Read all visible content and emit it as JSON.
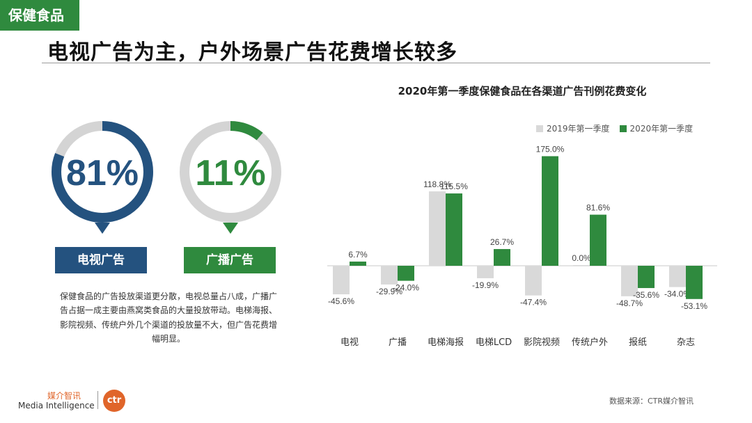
{
  "header": {
    "tag": "保健食品",
    "headline": "电视广告为主，户外场景广告花费增长较多"
  },
  "rings": [
    {
      "value": "81%",
      "fraction": 0.81,
      "label": "电视广告",
      "color": "#24527f",
      "label_bg": "#24527f"
    },
    {
      "value": "11%",
      "fraction": 0.11,
      "label": "广播广告",
      "color": "#2f8a3e",
      "label_bg": "#2f8a3e"
    }
  ],
  "description": "保健食品的广告投放渠道更分散，电视总量占八成，广播广告占据一成主要由燕窝类食品的大量投放带动。电梯海报、影院视频、传统户外几个渠道的投放量不大，但广告花费增幅明显。",
  "colors": {
    "series_2019": "#d9d9d9",
    "series_2020": "#2f8a3e",
    "ring_track": "#d4d4d4"
  },
  "chart_data": {
    "type": "bar",
    "title": "2020年第一季度保健食品在各渠道广告刊例花费变化",
    "categories": [
      "电视",
      "广播",
      "电梯海报",
      "电梯LCD",
      "影院视频",
      "传统户外",
      "报纸",
      "杂志"
    ],
    "series": [
      {
        "name": "2019年第一季度",
        "values": [
          -45.6,
          -29.9,
          118.8,
          -19.9,
          -47.4,
          0.0,
          -48.7,
          -34.0
        ],
        "labels": [
          "-45.6%",
          "-29.9%",
          "118.8%",
          "-19.9%",
          "-47.4%",
          "0.0%",
          "-48.7%",
          "-34.0%"
        ]
      },
      {
        "name": "2020年第一季度",
        "values": [
          6.7,
          -24.0,
          115.5,
          26.7,
          175.0,
          81.6,
          -35.6,
          -53.1
        ],
        "labels": [
          "6.7%",
          "-24.0%",
          "115.5%",
          "26.7%",
          "175.0%",
          "81.6%",
          "-35.6%",
          "-53.1%"
        ]
      }
    ],
    "legend_position": "top-right",
    "grid": false
  },
  "footer": {
    "logo_cn": "媒介智讯",
    "logo_en": "Media Intelligence",
    "logo_mark": "ctr",
    "source": "数据来源：CTR媒介智讯"
  }
}
